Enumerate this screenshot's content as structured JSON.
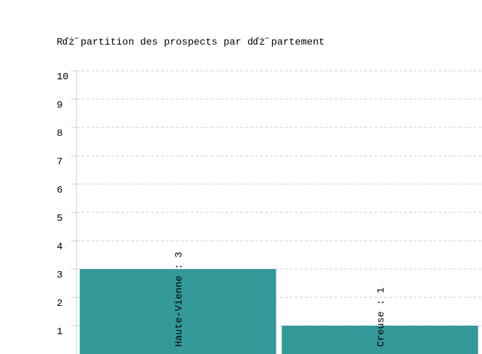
{
  "chart_data": {
    "type": "bar",
    "title": "Rďż˝partition des prospects par dďż˝partement",
    "values": [
      3,
      1
    ],
    "value_labels": [
      "Haute-Vienne : 3",
      "Creuse : 1"
    ],
    "color": "#339999",
    "ylim": [
      0,
      10
    ],
    "yticks": [
      1,
      2,
      3,
      4,
      5,
      6,
      7,
      8,
      9,
      10
    ],
    "grid": true
  }
}
